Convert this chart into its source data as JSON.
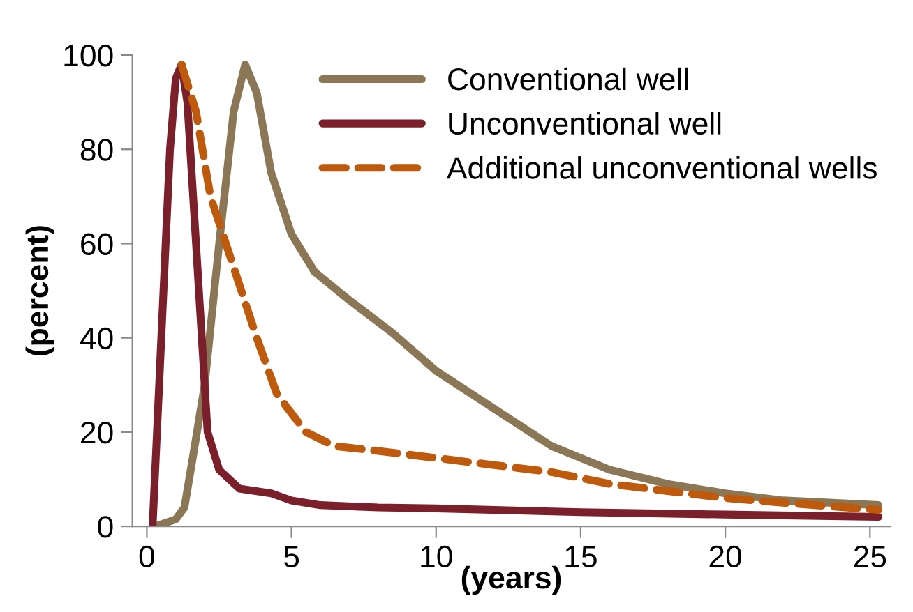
{
  "chart_data": {
    "type": "line",
    "xlabel": "(years)",
    "ylabel": "(percent)",
    "xlim": [
      -0.5,
      25.7
    ],
    "xticks": [
      0,
      5,
      10,
      15,
      20,
      25
    ],
    "ylim": [
      0,
      100
    ],
    "yticks": [
      0,
      20,
      40,
      60,
      80,
      100
    ],
    "grid": false,
    "legend": "top right",
    "marker": "none",
    "series": [
      {
        "name": "Conventional well",
        "color": "#8b7755",
        "line_style": "solid",
        "x": [
          0.3,
          1.0,
          1.3,
          1.6,
          2.0,
          2.5,
          3.0,
          3.4,
          3.8,
          4.3,
          5.0,
          5.8,
          7.0,
          8.5,
          10,
          12,
          14,
          16,
          18,
          20,
          22,
          25.3
        ],
        "values": [
          0,
          1.5,
          4,
          15,
          30,
          60,
          88,
          98,
          92,
          75,
          62,
          54,
          48,
          41,
          33,
          25,
          17,
          12,
          9,
          7,
          5.5,
          4.5
        ]
      },
      {
        "name": "Unconventional well",
        "color": "#7b1f2a",
        "line_style": "solid",
        "x": [
          0.2,
          0.5,
          0.8,
          1.0,
          1.2,
          1.4,
          1.7,
          2.1,
          2.5,
          3.2,
          4.3,
          5.0,
          6.0,
          8.0,
          10,
          15,
          20,
          25.3
        ],
        "values": [
          0,
          40,
          80,
          95,
          98,
          90,
          60,
          20,
          12,
          8,
          7,
          5.5,
          4.5,
          4,
          3.8,
          3,
          2.5,
          2
        ]
      },
      {
        "name": "Additional unconventional wells",
        "color": "#bf5a0c",
        "line_style": "dashed",
        "x": [
          1.2,
          1.7,
          2.2,
          3.0,
          3.8,
          4.5,
          5.5,
          6.5,
          8,
          10,
          12,
          14,
          16,
          18,
          20,
          22,
          25.3
        ],
        "values": [
          98,
          88,
          70,
          55,
          40,
          28,
          20,
          17,
          16,
          14.5,
          13,
          11.5,
          9,
          7.5,
          6,
          5,
          3.5
        ]
      }
    ]
  }
}
